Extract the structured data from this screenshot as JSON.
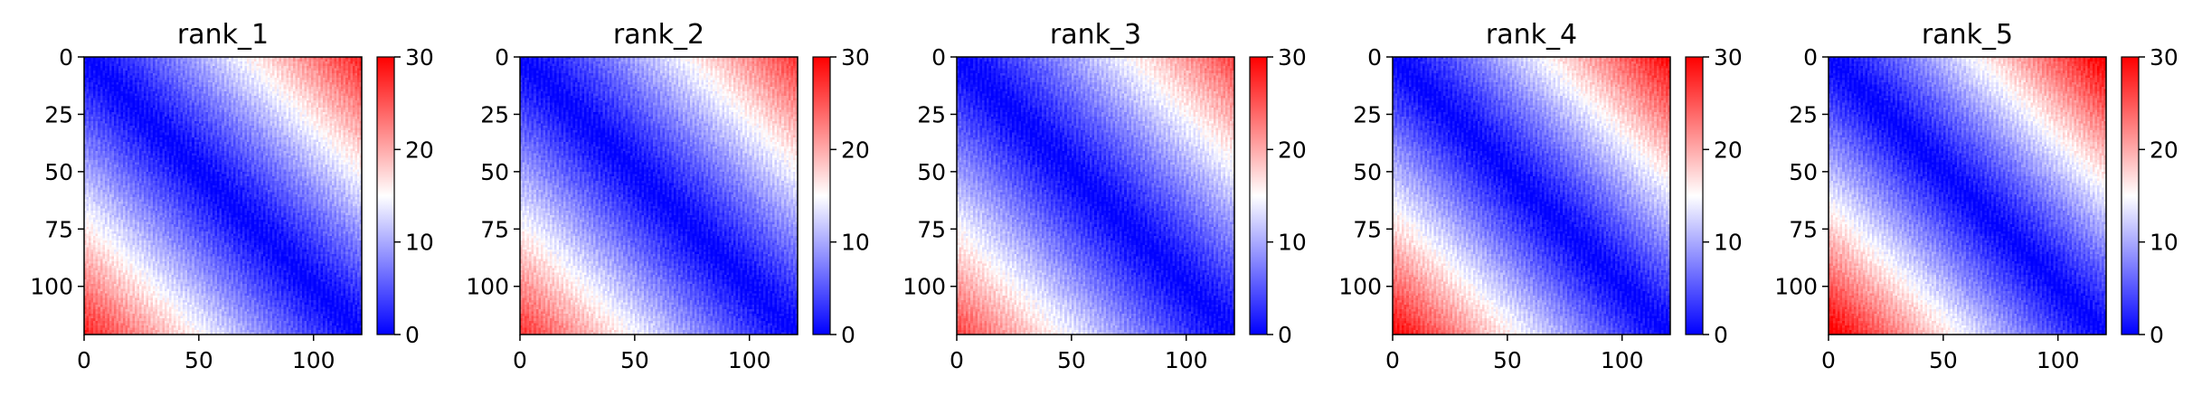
{
  "chart_data": [
    {
      "type": "heatmap",
      "title": "rank_1",
      "xlabel": "",
      "ylabel": "",
      "x_ticks": [
        "0",
        "50",
        "100"
      ],
      "y_ticks": [
        "0",
        "25",
        "50",
        "75",
        "100"
      ],
      "colorbar_ticks": [
        "0",
        "10",
        "20",
        "30"
      ],
      "matrix_size": 121,
      "value_range": [
        0,
        30
      ],
      "xlim": [
        0,
        121
      ],
      "ylim": [
        121,
        0
      ],
      "colormap": [
        "#0000ff",
        "#ffffff",
        "#ff0000"
      ],
      "description_of_values": "distance from diagonal; near 0 along diagonal, reaching ~30 in far corners",
      "corner_max": 28
    },
    {
      "type": "heatmap",
      "title": "rank_2",
      "xlabel": "",
      "ylabel": "",
      "x_ticks": [
        "0",
        "50",
        "100"
      ],
      "y_ticks": [
        "0",
        "25",
        "50",
        "75",
        "100"
      ],
      "colorbar_ticks": [
        "0",
        "10",
        "20",
        "30"
      ],
      "matrix_size": 121,
      "value_range": [
        0,
        30
      ],
      "xlim": [
        0,
        121
      ],
      "ylim": [
        121,
        0
      ],
      "colormap": [
        "#0000ff",
        "#ffffff",
        "#ff0000"
      ],
      "corner_max": 27
    },
    {
      "type": "heatmap",
      "title": "rank_3",
      "xlabel": "",
      "ylabel": "",
      "x_ticks": [
        "0",
        "50",
        "100"
      ],
      "y_ticks": [
        "0",
        "25",
        "50",
        "75",
        "100"
      ],
      "colorbar_ticks": [
        "0",
        "10",
        "20",
        "30"
      ],
      "matrix_size": 121,
      "value_range": [
        0,
        30
      ],
      "xlim": [
        0,
        121
      ],
      "ylim": [
        121,
        0
      ],
      "colormap": [
        "#0000ff",
        "#ffffff",
        "#ff0000"
      ],
      "corner_max": 26
    },
    {
      "type": "heatmap",
      "title": "rank_4",
      "xlabel": "",
      "ylabel": "",
      "x_ticks": [
        "0",
        "50",
        "100"
      ],
      "y_ticks": [
        "0",
        "25",
        "50",
        "75",
        "100"
      ],
      "colorbar_ticks": [
        "0",
        "10",
        "20",
        "30"
      ],
      "matrix_size": 121,
      "value_range": [
        0,
        30
      ],
      "xlim": [
        0,
        121
      ],
      "ylim": [
        121,
        0
      ],
      "colormap": [
        "#0000ff",
        "#ffffff",
        "#ff0000"
      ],
      "corner_max": 30
    },
    {
      "type": "heatmap",
      "title": "rank_5",
      "xlabel": "",
      "ylabel": "",
      "x_ticks": [
        "0",
        "50",
        "100"
      ],
      "y_ticks": [
        "0",
        "25",
        "50",
        "75",
        "100"
      ],
      "colorbar_ticks": [
        "0",
        "10",
        "20",
        "30"
      ],
      "matrix_size": 121,
      "value_range": [
        0,
        30
      ],
      "xlim": [
        0,
        121
      ],
      "ylim": [
        121,
        0
      ],
      "colormap": [
        "#0000ff",
        "#ffffff",
        "#ff0000"
      ],
      "corner_max": 31
    }
  ]
}
